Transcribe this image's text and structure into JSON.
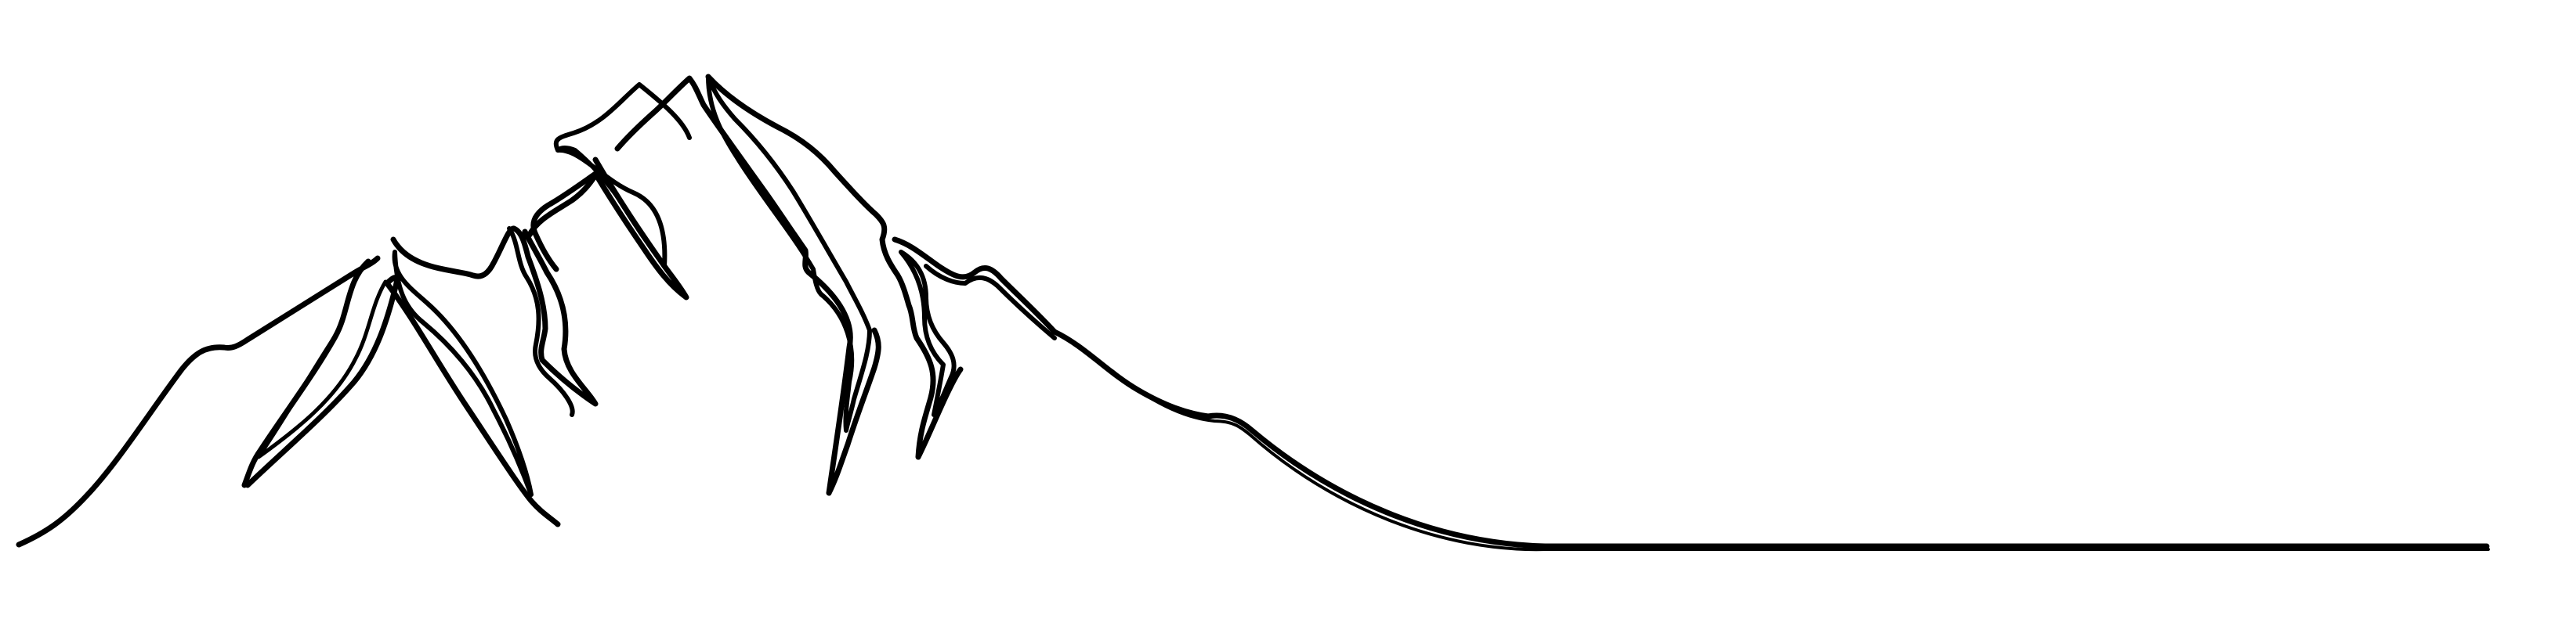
{
  "illustration": {
    "subject": "mountain-line-drawing",
    "colors": {
      "background": "#ffffff",
      "ink": "#000000"
    }
  }
}
